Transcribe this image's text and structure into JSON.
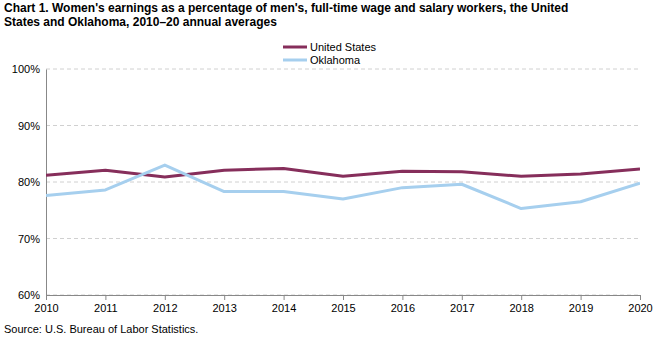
{
  "chart_data": {
    "type": "line",
    "title": [
      "Chart 1. Women's earnings as a percentage of men's, full-time wage and salary workers, the United",
      "States and Oklahoma, 2010–20  annual averages"
    ],
    "source": "Source: U.S. Bureau of Labor Statistics.",
    "x": [
      2010,
      2011,
      2012,
      2013,
      2014,
      2015,
      2016,
      2017,
      2018,
      2019,
      2020
    ],
    "series": [
      {
        "name": "United States",
        "color": "#862e5b",
        "values": [
          81.2,
          82.1,
          80.9,
          82.1,
          82.4,
          81.0,
          81.9,
          81.8,
          81.0,
          81.4,
          82.3
        ]
      },
      {
        "name": "Oklahoma",
        "color": "#a6cfee",
        "values": [
          77.6,
          78.6,
          83.0,
          78.3,
          78.3,
          77.0,
          79.0,
          79.6,
          75.3,
          76.5,
          79.8
        ]
      }
    ],
    "xlim": [
      2010,
      2020
    ],
    "xticks": [
      2010,
      2011,
      2012,
      2013,
      2014,
      2015,
      2016,
      2017,
      2018,
      2019,
      2020
    ],
    "ylim": [
      60,
      100
    ],
    "yticks": [
      {
        "value": 60,
        "label": "60%"
      },
      {
        "value": 70,
        "label": "70%"
      },
      {
        "value": 80,
        "label": "80%"
      },
      {
        "value": 90,
        "label": "90%"
      },
      {
        "value": 100,
        "label": "100%"
      }
    ],
    "grid": true,
    "legend": "top"
  }
}
